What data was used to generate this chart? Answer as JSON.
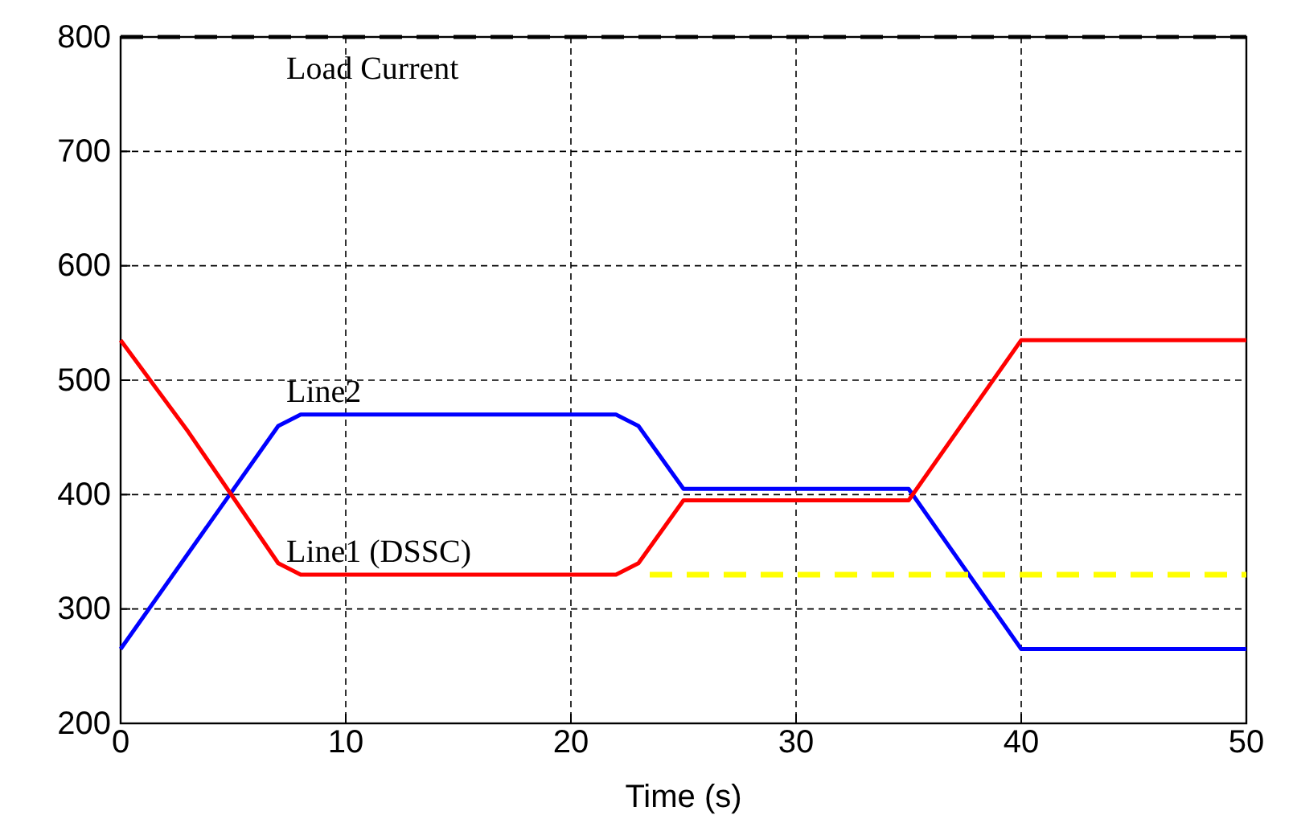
{
  "chart_data": {
    "type": "line",
    "xlabel": "Time (s)",
    "xlim": [
      0,
      50
    ],
    "xticks": [
      0,
      10,
      20,
      30,
      40,
      50
    ],
    "ylim": [
      200,
      800
    ],
    "yticks": [
      200,
      300,
      400,
      500,
      600,
      700,
      800
    ],
    "grid": true,
    "marker": "none",
    "series": [
      {
        "name": "Load Current",
        "color": "#000000",
        "line_style": "dashed",
        "x": [
          0,
          50
        ],
        "values": [
          800,
          800
        ]
      },
      {
        "name": "Line2",
        "color": "#0000ff",
        "line_style": "solid",
        "x": [
          0,
          7,
          8,
          22,
          23,
          25,
          35,
          40,
          50
        ],
        "values": [
          265,
          460,
          470,
          470,
          460,
          405,
          405,
          265,
          265
        ]
      },
      {
        "name": "Line1 (DSSC)",
        "color": "#ff0000",
        "line_style": "solid",
        "x": [
          0,
          3,
          7,
          8,
          22,
          23,
          25,
          35,
          40,
          50
        ],
        "values": [
          535,
          455,
          340,
          330,
          330,
          340,
          395,
          395,
          535,
          535
        ]
      },
      {
        "color": "#ffff00",
        "line_style": "dashed",
        "x": [
          23.5,
          50
        ],
        "values": [
          330,
          330
        ]
      }
    ]
  }
}
